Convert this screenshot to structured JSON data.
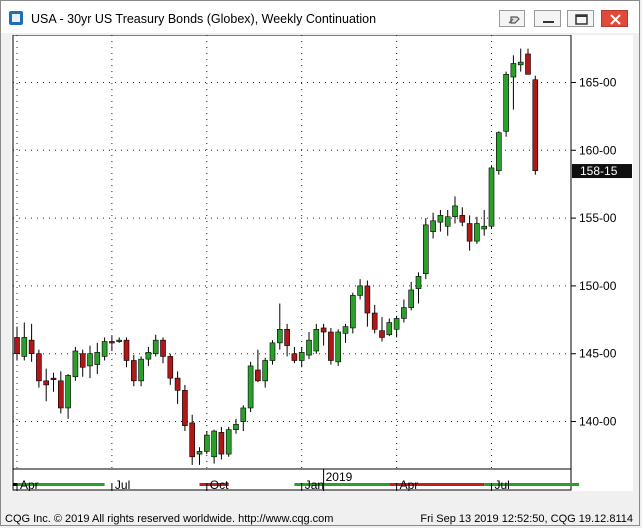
{
  "window": {
    "title": "USA - 30yr US Treasury Bonds (Globex), Weekly Continuation"
  },
  "titlebar_buttons": [
    {
      "name": "pin-icon"
    },
    {
      "name": "minimize-icon"
    },
    {
      "name": "restore-icon"
    },
    {
      "name": "close-icon"
    }
  ],
  "footer": {
    "copyright": "CQG Inc. © 2019 All rights reserved worldwide. http://www.cqg.com",
    "timestamp": "Fri Sep 13 2019 12:52:50, CQG 19.12.8114"
  },
  "colors": {
    "up": "#2aa02a",
    "down": "#b01818",
    "last_label_bg": "#101010",
    "last_label_fg": "#ffffff"
  },
  "chart_data": {
    "type": "candlestick",
    "title": "USA - 30yr US Treasury Bonds (Globex), Weekly Continuation",
    "ylim": [
      136.5,
      168.5
    ],
    "y_ticks": [
      {
        "value": 140,
        "label": "140-00"
      },
      {
        "value": 145,
        "label": "145-00"
      },
      {
        "value": 150,
        "label": "150-00"
      },
      {
        "value": 155,
        "label": "155-00"
      },
      {
        "value": 160,
        "label": "160-00"
      },
      {
        "value": 165,
        "label": "165-00"
      }
    ],
    "last_price": {
      "value": 158.47,
      "label": "158-15"
    },
    "x_labels": [
      {
        "label": "Apr",
        "index": 0
      },
      {
        "label": "Jul",
        "index": 13
      },
      {
        "label": "Oct",
        "index": 26
      },
      {
        "label": "Jan",
        "index": 39
      },
      {
        "label": "Apr",
        "index": 52
      },
      {
        "label": "Jul",
        "index": 65
      }
    ],
    "year_label": {
      "label": "2019",
      "index": 42
    },
    "month_bar_segments": [
      {
        "from": 0,
        "to": 12,
        "color": "green"
      },
      {
        "from": 25,
        "to": 29,
        "color": "red"
      },
      {
        "from": 38,
        "to": 51,
        "color": "green"
      },
      {
        "from": 51,
        "to": 64,
        "color": "red"
      },
      {
        "from": 64,
        "to": 77,
        "color": "green"
      }
    ],
    "ohlc": [
      [
        146.2,
        147.0,
        144.5,
        145.0
      ],
      [
        144.8,
        147.3,
        144.5,
        146.2
      ],
      [
        146.0,
        147.2,
        144.4,
        145.0
      ],
      [
        145.0,
        145.3,
        142.5,
        143.0
      ],
      [
        143.0,
        143.9,
        141.5,
        142.7
      ],
      [
        143.2,
        143.6,
        142.2,
        143.1
      ],
      [
        143.0,
        143.7,
        140.6,
        141.0
      ],
      [
        141.0,
        143.5,
        140.2,
        143.4
      ],
      [
        143.3,
        145.5,
        143.0,
        145.2
      ],
      [
        145.0,
        145.3,
        143.3,
        144.0
      ],
      [
        144.1,
        145.6,
        143.2,
        145.0
      ],
      [
        144.2,
        145.8,
        143.5,
        145.1
      ],
      [
        144.8,
        146.2,
        144.5,
        145.9
      ],
      [
        145.9,
        146.3,
        145.2,
        145.8
      ],
      [
        146.0,
        146.2,
        145.8,
        146.0
      ],
      [
        146.0,
        146.2,
        144.0,
        144.5
      ],
      [
        144.5,
        144.9,
        142.6,
        143.0
      ],
      [
        143.0,
        144.8,
        142.6,
        144.6
      ],
      [
        144.6,
        145.5,
        144.1,
        145.1
      ],
      [
        145.0,
        146.4,
        144.8,
        146.0
      ],
      [
        146.0,
        146.2,
        144.3,
        144.8
      ],
      [
        144.8,
        145.0,
        142.7,
        143.2
      ],
      [
        143.2,
        143.7,
        141.3,
        142.3
      ],
      [
        142.3,
        142.7,
        139.3,
        139.7
      ],
      [
        139.9,
        140.5,
        136.8,
        137.4
      ],
      [
        137.6,
        138.1,
        136.8,
        137.8
      ],
      [
        137.8,
        139.3,
        137.6,
        139.0
      ],
      [
        137.4,
        139.4,
        136.9,
        139.3
      ],
      [
        139.2,
        139.6,
        137.2,
        137.6
      ],
      [
        137.6,
        139.6,
        137.4,
        139.4
      ],
      [
        139.4,
        140.2,
        139.1,
        139.8
      ],
      [
        140.0,
        141.2,
        139.3,
        141.0
      ],
      [
        141.0,
        144.4,
        140.7,
        144.1
      ],
      [
        143.8,
        145.3,
        142.9,
        143.0
      ],
      [
        143.0,
        144.7,
        142.5,
        144.5
      ],
      [
        144.5,
        146.0,
        144.2,
        145.8
      ],
      [
        145.8,
        148.7,
        145.3,
        146.8
      ],
      [
        146.8,
        147.2,
        144.8,
        145.6
      ],
      [
        145.0,
        145.5,
        144.3,
        144.5
      ],
      [
        144.5,
        145.5,
        144.0,
        145.1
      ],
      [
        144.9,
        146.6,
        144.6,
        146.0
      ],
      [
        145.2,
        147.2,
        145.0,
        146.8
      ],
      [
        146.9,
        147.2,
        145.6,
        146.6
      ],
      [
        146.6,
        146.9,
        144.2,
        144.5
      ],
      [
        144.4,
        146.8,
        144.1,
        146.6
      ],
      [
        146.5,
        147.2,
        145.8,
        147.0
      ],
      [
        146.9,
        149.5,
        146.5,
        149.3
      ],
      [
        149.3,
        150.5,
        149.0,
        150.0
      ],
      [
        150.0,
        150.4,
        147.0,
        148.0
      ],
      [
        148.0,
        148.6,
        146.5,
        146.8
      ],
      [
        146.7,
        147.7,
        145.9,
        146.2
      ],
      [
        146.4,
        147.6,
        146.3,
        147.3
      ],
      [
        146.8,
        147.8,
        146.2,
        147.6
      ],
      [
        147.6,
        149.0,
        147.3,
        148.4
      ],
      [
        148.4,
        150.3,
        148.2,
        149.7
      ],
      [
        149.8,
        151.0,
        148.7,
        150.7
      ],
      [
        150.9,
        155.0,
        150.5,
        154.5
      ],
      [
        154.0,
        155.4,
        153.5,
        154.8
      ],
      [
        154.7,
        155.6,
        154.0,
        155.2
      ],
      [
        154.4,
        155.6,
        153.7,
        155.1
      ],
      [
        155.1,
        156.6,
        154.6,
        155.9
      ],
      [
        155.2,
        155.8,
        154.4,
        154.7
      ],
      [
        154.6,
        155.2,
        152.6,
        153.3
      ],
      [
        153.3,
        155.1,
        153.1,
        154.6
      ],
      [
        154.2,
        155.6,
        153.7,
        154.4
      ],
      [
        154.4,
        158.9,
        154.2,
        158.7
      ],
      [
        158.5,
        161.4,
        158.2,
        161.3
      ],
      [
        161.4,
        165.8,
        161.0,
        165.6
      ],
      [
        165.4,
        167.0,
        163.0,
        166.4
      ],
      [
        166.3,
        167.5,
        165.8,
        166.5
      ],
      [
        167.1,
        167.5,
        165.6,
        165.6
      ],
      [
        165.2,
        165.5,
        158.2,
        158.5
      ]
    ]
  }
}
